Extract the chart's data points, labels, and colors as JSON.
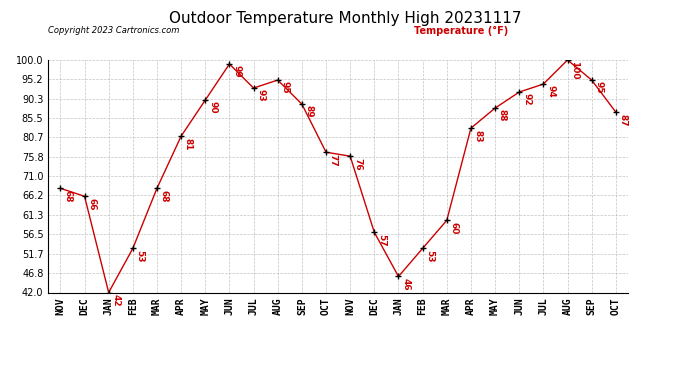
{
  "title": "Outdoor Temperature Monthly High 20231117",
  "copyright_text": "Copyright 2023 Cartronics.com",
  "legend_label": "Temperature (°F)",
  "months": [
    "NOV",
    "DEC",
    "JAN",
    "FEB",
    "MAR",
    "APR",
    "MAY",
    "JUN",
    "JUL",
    "AUG",
    "SEP",
    "OCT",
    "NOV",
    "DEC",
    "JAN",
    "FEB",
    "MAR",
    "APR",
    "MAY",
    "JUN",
    "JUL",
    "AUG",
    "SEP",
    "OCT"
  ],
  "values": [
    68,
    66,
    42,
    53,
    68,
    81,
    90,
    99,
    93,
    95,
    89,
    77,
    76,
    57,
    46,
    53,
    60,
    83,
    88,
    92,
    94,
    100,
    95,
    87
  ],
  "line_color": "#cc0000",
  "marker_color": "#000000",
  "label_color": "#cc0000",
  "yticks": [
    42.0,
    46.8,
    51.7,
    56.5,
    61.3,
    66.2,
    71.0,
    75.8,
    80.7,
    85.5,
    90.3,
    95.2,
    100.0
  ],
  "ylim": [
    42.0,
    100.0
  ],
  "background_color": "#ffffff",
  "grid_color": "#aaaaaa",
  "title_fontsize": 11,
  "tick_fontsize": 7,
  "copyright_fontsize": 6,
  "legend_fontsize": 7,
  "annotation_fontsize": 6.5
}
